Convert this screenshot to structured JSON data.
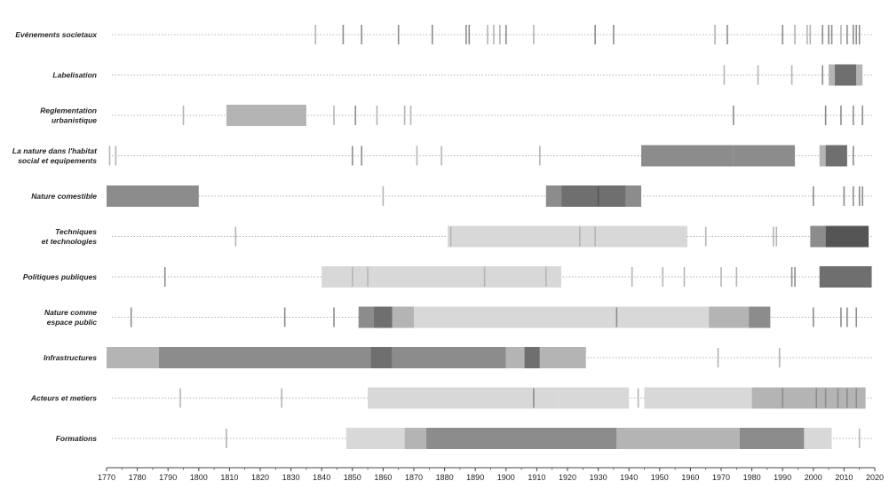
{
  "chart_data": {
    "type": "timeline",
    "title": "",
    "xlabel": "",
    "ylabel": "",
    "xlim": [
      1770,
      2020
    ],
    "xticks": [
      1770,
      1780,
      1790,
      1800,
      1810,
      1820,
      1830,
      1840,
      1850,
      1860,
      1870,
      1880,
      1890,
      1900,
      1910,
      1920,
      1930,
      1940,
      1950,
      1960,
      1970,
      1980,
      1990,
      2000,
      2010,
      2020
    ],
    "grid": false,
    "legend": "none",
    "colors": {
      "light": "#d8d8d8",
      "medium": "#b4b4b4",
      "dark": "#8c8c8c",
      "darker": "#6f6f6f",
      "darkest": "#555555",
      "axis": "#444444",
      "dotted": "#9a9a9a"
    },
    "categories": [
      {
        "name": "Evénements societaux",
        "name_lines": [
          "Evénements societaux"
        ],
        "bands": [],
        "ticks": [
          {
            "year": 1838,
            "shade": "medium"
          },
          {
            "year": 1847,
            "shade": "dark"
          },
          {
            "year": 1853,
            "shade": "dark"
          },
          {
            "year": 1865,
            "shade": "dark"
          },
          {
            "year": 1876,
            "shade": "dark"
          },
          {
            "year": 1887,
            "shade": "dark"
          },
          {
            "year": 1888,
            "shade": "dark"
          },
          {
            "year": 1894,
            "shade": "medium"
          },
          {
            "year": 1896,
            "shade": "medium"
          },
          {
            "year": 1898,
            "shade": "medium"
          },
          {
            "year": 1900,
            "shade": "dark"
          },
          {
            "year": 1909,
            "shade": "medium"
          },
          {
            "year": 1929,
            "shade": "dark"
          },
          {
            "year": 1935,
            "shade": "dark"
          },
          {
            "year": 1968,
            "shade": "medium"
          },
          {
            "year": 1972,
            "shade": "dark"
          },
          {
            "year": 1990,
            "shade": "dark"
          },
          {
            "year": 1994,
            "shade": "medium"
          },
          {
            "year": 1998,
            "shade": "medium"
          },
          {
            "year": 1999,
            "shade": "medium"
          },
          {
            "year": 2003,
            "shade": "dark"
          },
          {
            "year": 2005,
            "shade": "dark"
          },
          {
            "year": 2006,
            "shade": "dark"
          },
          {
            "year": 2009,
            "shade": "medium"
          },
          {
            "year": 2011,
            "shade": "dark"
          },
          {
            "year": 2013,
            "shade": "dark"
          },
          {
            "year": 2014,
            "shade": "dark"
          },
          {
            "year": 2015,
            "shade": "dark"
          }
        ]
      },
      {
        "name": "Labelisation",
        "name_lines": [
          "Labelisation"
        ],
        "bands": [
          {
            "start": 2005,
            "end": 2007,
            "shade": "medium"
          },
          {
            "start": 2007,
            "end": 2014,
            "shade": "darker"
          },
          {
            "start": 2014,
            "end": 2016,
            "shade": "medium"
          }
        ],
        "ticks": [
          {
            "year": 1971,
            "shade": "medium"
          },
          {
            "year": 1982,
            "shade": "medium"
          },
          {
            "year": 1993,
            "shade": "medium"
          },
          {
            "year": 2003,
            "shade": "dark"
          }
        ]
      },
      {
        "name": "Reglementation urbanistique",
        "name_lines": [
          "Reglementation",
          "urbanistique"
        ],
        "bands": [
          {
            "start": 1809,
            "end": 1835,
            "shade": "medium"
          }
        ],
        "ticks": [
          {
            "year": 1795,
            "shade": "medium"
          },
          {
            "year": 1844,
            "shade": "medium"
          },
          {
            "year": 1851,
            "shade": "dark"
          },
          {
            "year": 1858,
            "shade": "medium"
          },
          {
            "year": 1867,
            "shade": "medium"
          },
          {
            "year": 1869,
            "shade": "medium"
          },
          {
            "year": 1974,
            "shade": "dark"
          },
          {
            "year": 2004,
            "shade": "dark"
          },
          {
            "year": 2009,
            "shade": "dark"
          },
          {
            "year": 2013,
            "shade": "dark"
          },
          {
            "year": 2016,
            "shade": "dark"
          }
        ]
      },
      {
        "name": "La nature dans l'habitat social et equipements",
        "name_lines": [
          "La nature dans l'habitat",
          "social et equipements"
        ],
        "bands": [
          {
            "start": 1944,
            "end": 1974,
            "shade": "dark"
          },
          {
            "start": 1974,
            "end": 1994,
            "shade": "dark"
          },
          {
            "start": 2002,
            "end": 2004,
            "shade": "medium"
          },
          {
            "start": 2004,
            "end": 2011,
            "shade": "darker"
          }
        ],
        "ticks": [
          {
            "year": 1771,
            "shade": "medium"
          },
          {
            "year": 1773,
            "shade": "medium"
          },
          {
            "year": 1850,
            "shade": "dark"
          },
          {
            "year": 1853,
            "shade": "dark"
          },
          {
            "year": 1871,
            "shade": "medium"
          },
          {
            "year": 1879,
            "shade": "medium"
          },
          {
            "year": 1911,
            "shade": "medium"
          },
          {
            "year": 2013,
            "shade": "dark"
          }
        ]
      },
      {
        "name": "Nature comestible",
        "name_lines": [
          "Nature comestible"
        ],
        "bands": [
          {
            "start": 1770,
            "end": 1800,
            "shade": "dark"
          },
          {
            "start": 1913,
            "end": 1918,
            "shade": "dark"
          },
          {
            "start": 1918,
            "end": 1939,
            "shade": "darker"
          },
          {
            "start": 1939,
            "end": 1944,
            "shade": "dark"
          }
        ],
        "ticks": [
          {
            "year": 1860,
            "shade": "medium"
          },
          {
            "year": 1930,
            "shade": "darkest"
          },
          {
            "year": 2000,
            "shade": "dark"
          },
          {
            "year": 2010,
            "shade": "dark"
          },
          {
            "year": 2013,
            "shade": "dark"
          },
          {
            "year": 2015,
            "shade": "dark"
          },
          {
            "year": 2016,
            "shade": "dark"
          }
        ]
      },
      {
        "name": "Techniques et technologies",
        "name_lines": [
          "Techniques",
          "et technologies"
        ],
        "bands": [
          {
            "start": 1881,
            "end": 1959,
            "shade": "light"
          },
          {
            "start": 1999,
            "end": 2004,
            "shade": "dark"
          },
          {
            "start": 2004,
            "end": 2018,
            "shade": "darkest"
          }
        ],
        "ticks": [
          {
            "year": 1812,
            "shade": "medium"
          },
          {
            "year": 1882,
            "shade": "medium"
          },
          {
            "year": 1924,
            "shade": "medium"
          },
          {
            "year": 1929,
            "shade": "medium"
          },
          {
            "year": 1965,
            "shade": "medium"
          },
          {
            "year": 1987,
            "shade": "medium"
          },
          {
            "year": 1988,
            "shade": "medium"
          }
        ]
      },
      {
        "name": "Politiques publiques",
        "name_lines": [
          "Politiques publiques"
        ],
        "bands": [
          {
            "start": 1840,
            "end": 1918,
            "shade": "light"
          },
          {
            "start": 2002,
            "end": 2019,
            "shade": "darker"
          }
        ],
        "ticks": [
          {
            "year": 1789,
            "shade": "dark"
          },
          {
            "year": 1850,
            "shade": "medium"
          },
          {
            "year": 1855,
            "shade": "medium"
          },
          {
            "year": 1893,
            "shade": "medium"
          },
          {
            "year": 1913,
            "shade": "medium"
          },
          {
            "year": 1941,
            "shade": "medium"
          },
          {
            "year": 1951,
            "shade": "medium"
          },
          {
            "year": 1958,
            "shade": "medium"
          },
          {
            "year": 1970,
            "shade": "medium"
          },
          {
            "year": 1975,
            "shade": "medium"
          },
          {
            "year": 1993,
            "shade": "dark"
          },
          {
            "year": 1994,
            "shade": "dark"
          }
        ]
      },
      {
        "name": "Nature comme espace public",
        "name_lines": [
          "Nature comme",
          "espace public"
        ],
        "bands": [
          {
            "start": 1852,
            "end": 1857,
            "shade": "dark"
          },
          {
            "start": 1857,
            "end": 1863,
            "shade": "darker"
          },
          {
            "start": 1863,
            "end": 1870,
            "shade": "medium"
          },
          {
            "start": 1870,
            "end": 1966,
            "shade": "light"
          },
          {
            "start": 1966,
            "end": 1979,
            "shade": "medium"
          },
          {
            "start": 1979,
            "end": 1986,
            "shade": "dark"
          }
        ],
        "ticks": [
          {
            "year": 1778,
            "shade": "dark"
          },
          {
            "year": 1828,
            "shade": "dark"
          },
          {
            "year": 1844,
            "shade": "dark"
          },
          {
            "year": 1936,
            "shade": "dark"
          },
          {
            "year": 1972,
            "shade": "medium"
          },
          {
            "year": 2000,
            "shade": "dark"
          },
          {
            "year": 2009,
            "shade": "dark"
          },
          {
            "year": 2011,
            "shade": "dark"
          },
          {
            "year": 2014,
            "shade": "dark"
          }
        ]
      },
      {
        "name": "Infrastructures",
        "name_lines": [
          "Infrastructures"
        ],
        "bands": [
          {
            "start": 1770,
            "end": 1787,
            "shade": "medium"
          },
          {
            "start": 1787,
            "end": 1856,
            "shade": "dark"
          },
          {
            "start": 1856,
            "end": 1863,
            "shade": "darker"
          },
          {
            "start": 1863,
            "end": 1900,
            "shade": "dark"
          },
          {
            "start": 1900,
            "end": 1906,
            "shade": "medium"
          },
          {
            "start": 1906,
            "end": 1911,
            "shade": "darker"
          },
          {
            "start": 1911,
            "end": 1926,
            "shade": "medium"
          }
        ],
        "ticks": [
          {
            "year": 1969,
            "shade": "medium"
          },
          {
            "year": 1989,
            "shade": "medium"
          }
        ]
      },
      {
        "name": "Acteurs et metiers",
        "name_lines": [
          "Acteurs et metiers"
        ],
        "bands": [
          {
            "start": 1855,
            "end": 1917,
            "shade": "light"
          },
          {
            "start": 1917,
            "end": 1940,
            "shade": "light"
          },
          {
            "start": 1945,
            "end": 1980,
            "shade": "light"
          },
          {
            "start": 1980,
            "end": 2017,
            "shade": "medium"
          }
        ],
        "ticks": [
          {
            "year": 1794,
            "shade": "medium"
          },
          {
            "year": 1827,
            "shade": "medium"
          },
          {
            "year": 1909,
            "shade": "dark"
          },
          {
            "year": 1943,
            "shade": "medium"
          },
          {
            "year": 1990,
            "shade": "dark"
          },
          {
            "year": 2001,
            "shade": "dark"
          },
          {
            "year": 2004,
            "shade": "dark"
          },
          {
            "year": 2008,
            "shade": "dark"
          },
          {
            "year": 2011,
            "shade": "dark"
          },
          {
            "year": 2014,
            "shade": "dark"
          }
        ]
      },
      {
        "name": "Formations",
        "name_lines": [
          "Formations"
        ],
        "bands": [
          {
            "start": 1848,
            "end": 1867,
            "shade": "light"
          },
          {
            "start": 1867,
            "end": 1874,
            "shade": "medium"
          },
          {
            "start": 1874,
            "end": 1936,
            "shade": "dark"
          },
          {
            "start": 1936,
            "end": 1976,
            "shade": "medium"
          },
          {
            "start": 1976,
            "end": 1997,
            "shade": "dark"
          },
          {
            "start": 1997,
            "end": 2006,
            "shade": "light"
          }
        ],
        "ticks": [
          {
            "year": 1809,
            "shade": "medium"
          },
          {
            "year": 1965,
            "shade": "medium"
          },
          {
            "year": 2015,
            "shade": "medium"
          }
        ]
      }
    ]
  }
}
